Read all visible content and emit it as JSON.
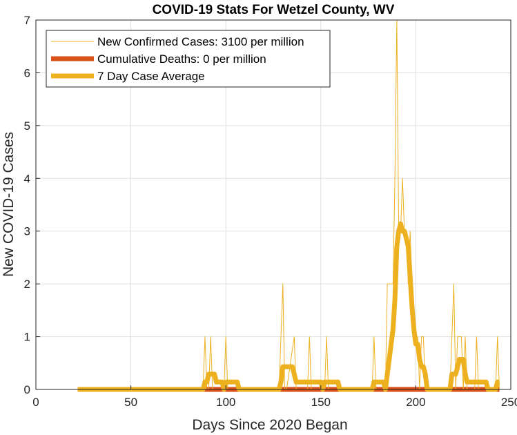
{
  "chart_data": {
    "type": "line",
    "title": "COVID-19 Stats For Wetzel County, WV",
    "xlabel": "Days Since 2020 Began",
    "ylabel": "New COVID-19 Cases",
    "xlim": [
      0,
      250
    ],
    "ylim": [
      0,
      7
    ],
    "xticks": [
      0,
      50,
      100,
      150,
      200,
      250
    ],
    "yticks": [
      0,
      1,
      2,
      3,
      4,
      5,
      6,
      7
    ],
    "grid": true,
    "legend_position": "top-left",
    "series": [
      {
        "name": "New Confirmed Cases: 3100 per million",
        "color": "#EDB120",
        "style": "thin",
        "points": [
          [
            22,
            0
          ],
          [
            88,
            0
          ],
          [
            89,
            1
          ],
          [
            90,
            0
          ],
          [
            91,
            0
          ],
          [
            92,
            1
          ],
          [
            93,
            0
          ],
          [
            99,
            0
          ],
          [
            100,
            1
          ],
          [
            101,
            0
          ],
          [
            128,
            0
          ],
          [
            129,
            1
          ],
          [
            130,
            2
          ],
          [
            131,
            0
          ],
          [
            132,
            0
          ],
          [
            136,
            1
          ],
          [
            137,
            0
          ],
          [
            143,
            0
          ],
          [
            144,
            1
          ],
          [
            145,
            0
          ],
          [
            152,
            0
          ],
          [
            153,
            1
          ],
          [
            154,
            0
          ],
          [
            177,
            0
          ],
          [
            178,
            1
          ],
          [
            179,
            0
          ],
          [
            184,
            0
          ],
          [
            185,
            2
          ],
          [
            186,
            2
          ],
          [
            187,
            2
          ],
          [
            188,
            2
          ],
          [
            189,
            4
          ],
          [
            190,
            7
          ],
          [
            191,
            3
          ],
          [
            192,
            3
          ],
          [
            193,
            4
          ],
          [
            194,
            3
          ],
          [
            195,
            3
          ],
          [
            196,
            2
          ],
          [
            197,
            3
          ],
          [
            198,
            2
          ],
          [
            199,
            1
          ],
          [
            200,
            1
          ],
          [
            201,
            1
          ],
          [
            202,
            0
          ],
          [
            203,
            1
          ],
          [
            204,
            1
          ],
          [
            205,
            0
          ],
          [
            218,
            0
          ],
          [
            219,
            1
          ],
          [
            220,
            2
          ],
          [
            221,
            0
          ],
          [
            222,
            1
          ],
          [
            223,
            1
          ],
          [
            224,
            1
          ],
          [
            225,
            0
          ],
          [
            226,
            1
          ],
          [
            227,
            0
          ],
          [
            231,
            0
          ],
          [
            232,
            1
          ],
          [
            233,
            0
          ],
          [
            242,
            0
          ],
          [
            243,
            1
          ],
          [
            244,
            0
          ]
        ]
      },
      {
        "name": "Cumulative Deaths: 0 per million",
        "color": "#D95319",
        "style": "thick",
        "points": [
          [
            22,
            0
          ],
          [
            244,
            0
          ]
        ]
      },
      {
        "name": "7 Day Case Average",
        "color": "#EDB120",
        "style": "thick",
        "points": [
          [
            22,
            0
          ],
          [
            88,
            0
          ],
          [
            89,
            0.14
          ],
          [
            90,
            0.14
          ],
          [
            91,
            0.29
          ],
          [
            92,
            0.29
          ],
          [
            93,
            0.29
          ],
          [
            94,
            0.29
          ],
          [
            95,
            0.14
          ],
          [
            96,
            0.14
          ],
          [
            97,
            0.14
          ],
          [
            98,
            0.14
          ],
          [
            99,
            0
          ],
          [
            100,
            0.14
          ],
          [
            101,
            0.14
          ],
          [
            102,
            0.14
          ],
          [
            103,
            0.14
          ],
          [
            104,
            0.14
          ],
          [
            105,
            0.14
          ],
          [
            106,
            0.14
          ],
          [
            107,
            0
          ],
          [
            128,
            0
          ],
          [
            129,
            0.14
          ],
          [
            130,
            0.43
          ],
          [
            131,
            0.43
          ],
          [
            132,
            0.43
          ],
          [
            133,
            0.43
          ],
          [
            134,
            0.43
          ],
          [
            135,
            0.43
          ],
          [
            136,
            0.29
          ],
          [
            137,
            0.14
          ],
          [
            138,
            0.14
          ],
          [
            139,
            0.14
          ],
          [
            140,
            0.14
          ],
          [
            141,
            0.14
          ],
          [
            142,
            0.14
          ],
          [
            143,
            0.14
          ],
          [
            144,
            0.14
          ],
          [
            145,
            0.14
          ],
          [
            146,
            0.14
          ],
          [
            147,
            0.14
          ],
          [
            148,
            0.14
          ],
          [
            149,
            0.14
          ],
          [
            150,
            0.14
          ],
          [
            151,
            0
          ],
          [
            152,
            0.14
          ],
          [
            153,
            0.14
          ],
          [
            154,
            0.14
          ],
          [
            155,
            0.14
          ],
          [
            156,
            0.14
          ],
          [
            157,
            0.14
          ],
          [
            158,
            0.14
          ],
          [
            159,
            0.14
          ],
          [
            160,
            0
          ],
          [
            177,
            0
          ],
          [
            178,
            0.14
          ],
          [
            179,
            0.14
          ],
          [
            180,
            0.14
          ],
          [
            181,
            0.14
          ],
          [
            182,
            0.14
          ],
          [
            183,
            0.14
          ],
          [
            184,
            0
          ],
          [
            185,
            0.29
          ],
          [
            186,
            0.57
          ],
          [
            187,
            0.86
          ],
          [
            188,
            1.14
          ],
          [
            189,
            1.71
          ],
          [
            190,
            2.71
          ],
          [
            191,
            3
          ],
          [
            192,
            3.14
          ],
          [
            193,
            3
          ],
          [
            194,
            3
          ],
          [
            195,
            2.86
          ],
          [
            196,
            2.71
          ],
          [
            197,
            2.14
          ],
          [
            198,
            1.57
          ],
          [
            199,
            1.14
          ],
          [
            200,
            0.86
          ],
          [
            201,
            0.86
          ],
          [
            202,
            0.57
          ],
          [
            203,
            0.43
          ],
          [
            204,
            0.43
          ],
          [
            205,
            0.29
          ],
          [
            206,
            0
          ],
          [
            218,
            0
          ],
          [
            219,
            0.29
          ],
          [
            220,
            0.29
          ],
          [
            221,
            0.29
          ],
          [
            222,
            0.43
          ],
          [
            223,
            0.57
          ],
          [
            224,
            0.57
          ],
          [
            225,
            0.57
          ],
          [
            226,
            0.29
          ],
          [
            227,
            0.14
          ],
          [
            228,
            0.14
          ],
          [
            229,
            0.14
          ],
          [
            230,
            0.14
          ],
          [
            231,
            0.14
          ],
          [
            232,
            0.14
          ],
          [
            233,
            0.14
          ],
          [
            234,
            0.14
          ],
          [
            235,
            0.14
          ],
          [
            236,
            0.14
          ],
          [
            237,
            0.14
          ],
          [
            238,
            0
          ],
          [
            242,
            0
          ],
          [
            243,
            0.14
          ],
          [
            244,
            0.14
          ]
        ]
      }
    ]
  }
}
